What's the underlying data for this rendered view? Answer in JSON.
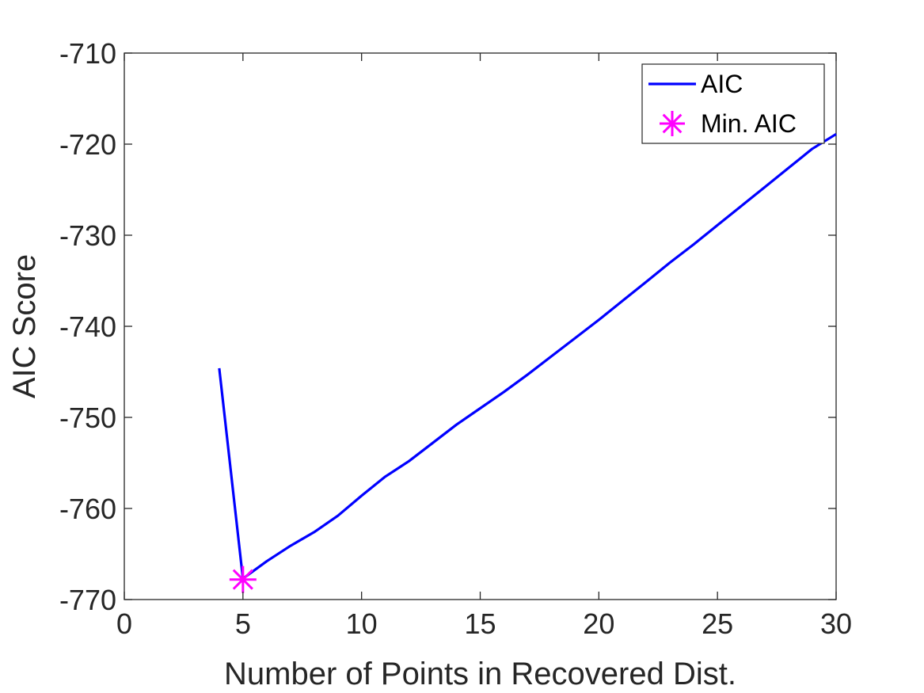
{
  "chart_data": {
    "type": "line",
    "title": "",
    "xlabel": "Number of Points in Recovered Dist.",
    "ylabel": "AIC Score",
    "xlim": [
      0,
      30
    ],
    "ylim": [
      -770,
      -710
    ],
    "xticks": [
      0,
      5,
      10,
      15,
      20,
      25,
      30
    ],
    "yticks": [
      -770,
      -760,
      -750,
      -740,
      -730,
      -720,
      -710
    ],
    "grid": false,
    "legend_placement": "top-right",
    "series": [
      {
        "name": "AIC",
        "color": "#0000ff",
        "x": [
          4,
          5,
          6,
          7,
          8,
          9,
          10,
          11,
          12,
          13,
          14,
          15,
          16,
          17,
          18,
          19,
          20,
          21,
          22,
          23,
          24,
          25,
          26,
          27,
          28,
          29,
          30
        ],
        "y": [
          -744.6,
          -767.7,
          -765.8,
          -764.1,
          -762.6,
          -760.8,
          -758.6,
          -756.5,
          -754.8,
          -752.8,
          -750.8,
          -749.0,
          -747.2,
          -745.3,
          -743.3,
          -741.3,
          -739.3,
          -737.2,
          -735.1,
          -733.0,
          -731.0,
          -728.9,
          -726.8,
          -724.7,
          -722.6,
          -720.5,
          -718.9
        ]
      },
      {
        "name": "Min. AIC",
        "color": "#ff00ff",
        "marker": "asterisk",
        "x": [
          5
        ],
        "y": [
          -767.8
        ]
      }
    ]
  }
}
